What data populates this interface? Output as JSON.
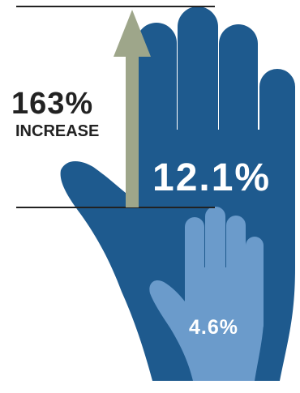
{
  "chart_data": {
    "type": "bar",
    "categories": [
      "large-hand",
      "small-hand"
    ],
    "values": [
      12.1,
      4.6
    ],
    "value_labels": [
      "12.1%",
      "4.6%"
    ],
    "unit": "%",
    "increase": {
      "value_label": "163%",
      "text": "INCREASE"
    }
  },
  "colors": {
    "large_hand": "#1e5a8e",
    "small_hand": "#6b9bcb",
    "arrow": "#9ea68a",
    "label_dark": "#222222",
    "label_light": "#ffffff",
    "reference_line": "#222222"
  }
}
